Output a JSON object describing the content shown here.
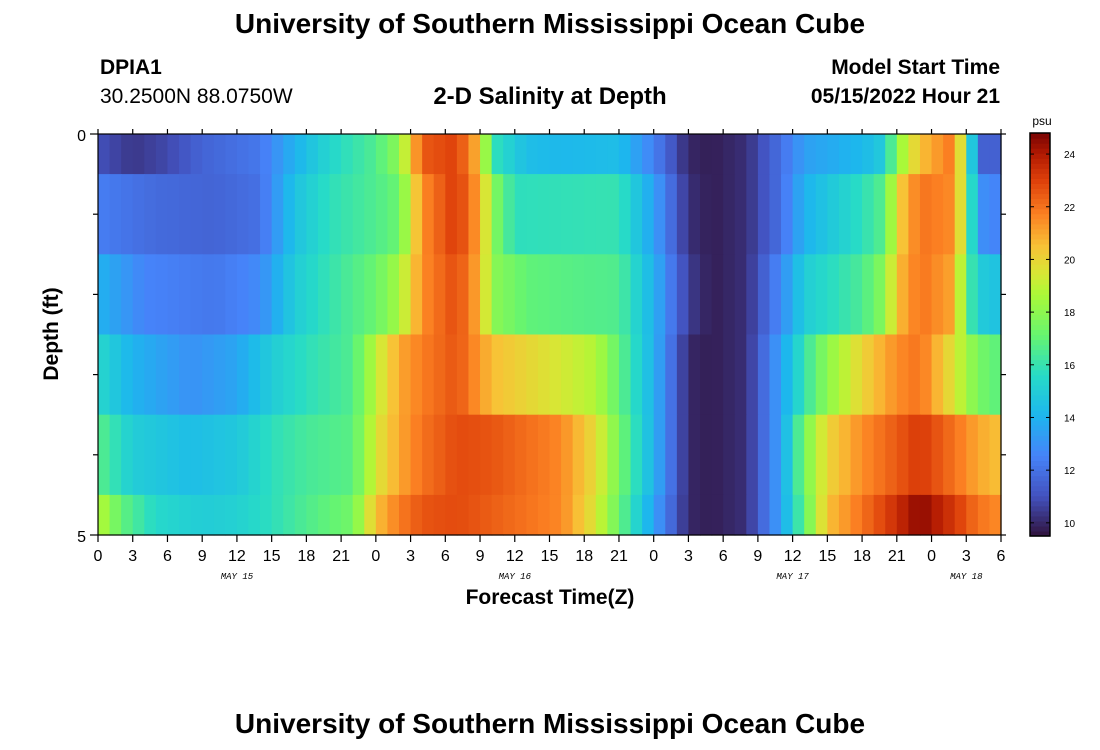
{
  "header": {
    "title": "University of Southern Mississippi Ocean Cube",
    "station_id": "DPIA1",
    "station_coords": "30.2500N  88.0750W",
    "start_label": "Model Start Time",
    "start_value": "05/15/2022 Hour 21"
  },
  "footer": {
    "title": "University of Southern Mississippi Ocean Cube"
  },
  "chart_data": {
    "type": "heatmap",
    "title": "2-D Salinity at Depth",
    "xlabel": "Forecast Time(Z)",
    "ylabel": "Depth (ft)",
    "x_hours_range": [
      0,
      78
    ],
    "x_tick_step_hours": 3,
    "x_tick_labels": [
      "0",
      "3",
      "6",
      "9",
      "12",
      "15",
      "18",
      "21",
      "0",
      "3",
      "6",
      "9",
      "12",
      "15",
      "18",
      "21",
      "0",
      "3",
      "6",
      "9",
      "12",
      "15",
      "18",
      "21",
      "0",
      "3",
      "6"
    ],
    "day_labels": [
      {
        "text": "MAY 15",
        "hour": 12
      },
      {
        "text": "MAY 16",
        "hour": 36
      },
      {
        "text": "MAY 17",
        "hour": 60
      },
      {
        "text": "MAY 18",
        "hour": 75
      }
    ],
    "y_range": [
      0,
      5
    ],
    "y_tick_labels": [
      "0",
      "5"
    ],
    "depth_levels": 5,
    "colorbar": {
      "unit": "psu",
      "range": [
        9.5,
        24.8
      ],
      "tick_values": [
        10,
        12,
        14,
        16,
        18,
        20,
        22,
        24
      ]
    },
    "profiles": [
      [
        [
          0,
          11.0
        ],
        [
          3,
          10.4
        ],
        [
          6,
          10.8
        ],
        [
          9,
          11.6
        ],
        [
          14,
          12.2
        ],
        [
          17,
          14.0
        ],
        [
          20,
          15.4
        ],
        [
          24,
          16.6
        ],
        [
          26,
          18.0
        ],
        [
          28,
          22.5
        ],
        [
          31,
          23.0
        ],
        [
          33,
          20.5
        ],
        [
          34,
          16.0
        ],
        [
          37,
          14.4
        ],
        [
          40,
          14.2
        ],
        [
          45,
          14.4
        ],
        [
          48,
          12.5
        ],
        [
          51,
          10.0
        ],
        [
          53,
          9.8
        ],
        [
          56,
          10.2
        ],
        [
          59,
          12.0
        ],
        [
          61,
          13.4
        ],
        [
          66,
          14.2
        ],
        [
          68,
          15.0
        ],
        [
          69,
          18.0
        ],
        [
          71,
          20.5
        ],
        [
          74,
          22.0
        ],
        [
          75,
          17.5
        ],
        [
          76,
          12.0
        ],
        [
          77,
          11.0
        ],
        [
          78,
          12.0
        ]
      ],
      [
        [
          0,
          12.4
        ],
        [
          5,
          11.8
        ],
        [
          10,
          11.6
        ],
        [
          14,
          12.0
        ],
        [
          17,
          14.6
        ],
        [
          20,
          15.8
        ],
        [
          24,
          16.6
        ],
        [
          26,
          17.2
        ],
        [
          28,
          21.5
        ],
        [
          31,
          23.2
        ],
        [
          33,
          21.0
        ],
        [
          34,
          18.0
        ],
        [
          36,
          15.8
        ],
        [
          45,
          16.0
        ],
        [
          48,
          13.5
        ],
        [
          51,
          10.2
        ],
        [
          53,
          9.8
        ],
        [
          56,
          10.2
        ],
        [
          59,
          12.0
        ],
        [
          61,
          14.0
        ],
        [
          66,
          15.8
        ],
        [
          68,
          16.8
        ],
        [
          69,
          20.0
        ],
        [
          71,
          22.0
        ],
        [
          74,
          21.5
        ],
        [
          75,
          18.0
        ],
        [
          76,
          13.0
        ],
        [
          78,
          12.5
        ]
      ],
      [
        [
          0,
          14.0
        ],
        [
          4,
          12.6
        ],
        [
          10,
          12.2
        ],
        [
          14,
          12.8
        ],
        [
          17,
          15.0
        ],
        [
          20,
          16.0
        ],
        [
          24,
          17.2
        ],
        [
          26,
          18.5
        ],
        [
          28,
          21.5
        ],
        [
          31,
          22.8
        ],
        [
          33,
          20.8
        ],
        [
          34,
          18.0
        ],
        [
          37,
          17.0
        ],
        [
          40,
          16.8
        ],
        [
          45,
          16.6
        ],
        [
          48,
          14.0
        ],
        [
          51,
          10.5
        ],
        [
          53,
          9.8
        ],
        [
          56,
          10.2
        ],
        [
          59,
          12.8
        ],
        [
          61,
          15.0
        ],
        [
          66,
          16.5
        ],
        [
          68,
          18.0
        ],
        [
          69,
          20.5
        ],
        [
          71,
          22.0
        ],
        [
          74,
          21.0
        ],
        [
          75,
          17.0
        ],
        [
          76,
          15.0
        ],
        [
          78,
          14.5
        ]
      ],
      [
        [
          0,
          15.5
        ],
        [
          3,
          14.0
        ],
        [
          8,
          13.0
        ],
        [
          12,
          13.6
        ],
        [
          15,
          15.0
        ],
        [
          18,
          15.8
        ],
        [
          22,
          16.6
        ],
        [
          24,
          19.0
        ],
        [
          26,
          21.0
        ],
        [
          28,
          21.8
        ],
        [
          31,
          22.6
        ],
        [
          34,
          20.6
        ],
        [
          40,
          19.4
        ],
        [
          43,
          18.8
        ],
        [
          45,
          17.0
        ],
        [
          48,
          14.0
        ],
        [
          51,
          10.0
        ],
        [
          53,
          9.8
        ],
        [
          56,
          10.2
        ],
        [
          59,
          13.5
        ],
        [
          61,
          16.0
        ],
        [
          63,
          18.0
        ],
        [
          66,
          20.0
        ],
        [
          69,
          21.5
        ],
        [
          71,
          22.0
        ],
        [
          74,
          19.5
        ],
        [
          76,
          17.5
        ],
        [
          78,
          16.8
        ]
      ],
      [
        [
          0,
          16.8
        ],
        [
          3,
          15.0
        ],
        [
          8,
          14.4
        ],
        [
          12,
          14.8
        ],
        [
          15,
          15.8
        ],
        [
          18,
          16.4
        ],
        [
          22,
          16.8
        ],
        [
          24,
          19.5
        ],
        [
          26,
          21.0
        ],
        [
          28,
          22.0
        ],
        [
          31,
          22.8
        ],
        [
          34,
          22.6
        ],
        [
          40,
          21.6
        ],
        [
          43,
          19.8
        ],
        [
          45,
          17.5
        ],
        [
          48,
          14.0
        ],
        [
          51,
          10.0
        ],
        [
          53,
          9.8
        ],
        [
          56,
          10.2
        ],
        [
          59,
          13.5
        ],
        [
          61,
          17.5
        ],
        [
          63,
          20.0
        ],
        [
          66,
          21.5
        ],
        [
          69,
          22.5
        ],
        [
          71,
          23.2
        ],
        [
          74,
          22.0
        ],
        [
          76,
          21.0
        ],
        [
          78,
          20.5
        ]
      ],
      [
        [
          0,
          19.0
        ],
        [
          2,
          17.0
        ],
        [
          5,
          15.5
        ],
        [
          9,
          15.0
        ],
        [
          12,
          15.2
        ],
        [
          15,
          15.8
        ],
        [
          18,
          16.6
        ],
        [
          22,
          17.4
        ],
        [
          24,
          20.5
        ],
        [
          26,
          21.8
        ],
        [
          28,
          22.6
        ],
        [
          31,
          22.8
        ],
        [
          34,
          22.4
        ],
        [
          40,
          21.6
        ],
        [
          43,
          19.5
        ],
        [
          45,
          17.2
        ],
        [
          48,
          13.5
        ],
        [
          51,
          10.0
        ],
        [
          53,
          9.8
        ],
        [
          56,
          10.2
        ],
        [
          59,
          13.5
        ],
        [
          61,
          17.0
        ],
        [
          63,
          20.5
        ],
        [
          66,
          22.0
        ],
        [
          69,
          23.5
        ],
        [
          71,
          24.6
        ],
        [
          74,
          23.2
        ],
        [
          76,
          22.0
        ],
        [
          78,
          21.5
        ]
      ]
    ]
  }
}
